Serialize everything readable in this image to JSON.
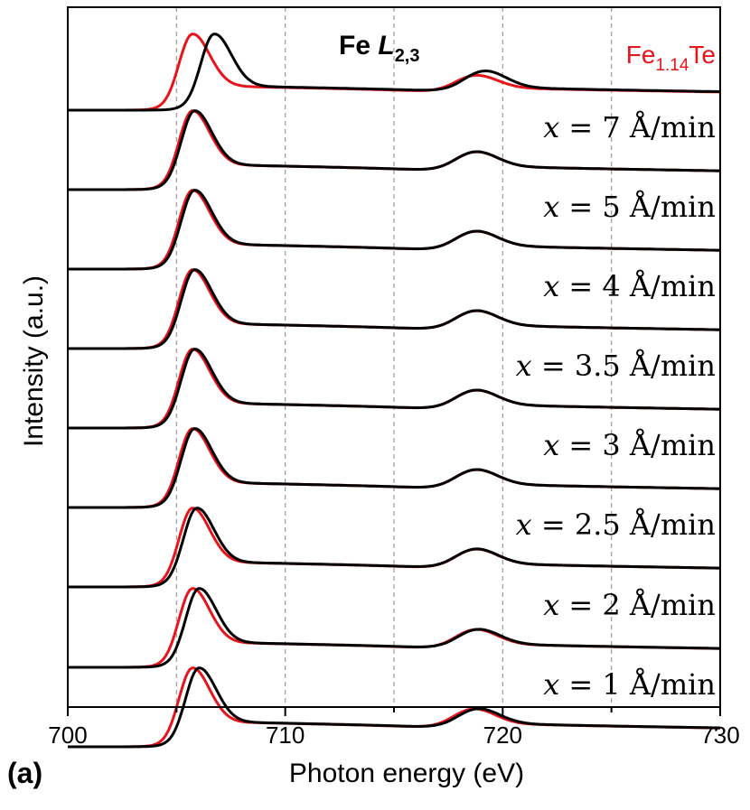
{
  "chart_data": {
    "type": "line",
    "panel_label": "(a)",
    "annotation_title": {
      "main": "Fe ",
      "italic": "L",
      "sub": "2,3"
    },
    "reference_label": {
      "main": "Fe",
      "sub": "1.14",
      "tail": "Te"
    },
    "xlabel": "Photon energy (eV)",
    "ylabel": "Intensity (a.u.)",
    "xlim": [
      700,
      730
    ],
    "x_ticks": [
      "700",
      "710",
      "720",
      "730"
    ],
    "x_tick_values": [
      700,
      710,
      720,
      730
    ],
    "minor_tick_step": 5,
    "grid": "vertical dashed lines at 705, 710, 715, 720, 725",
    "grid_lines": [
      705,
      710,
      715,
      720,
      725
    ],
    "y_ticks": "none",
    "colors": {
      "sample": "#000000",
      "reference": "#e8141b",
      "grid": "#9a9a9a"
    },
    "series_description": "Each panel row shows a black sample spectrum overlaid with the red Fe1.14Te reference; spectra are vertically offset.",
    "spectra": [
      {
        "label": "",
        "label_pre": "",
        "label_value": "",
        "label_unit": "",
        "L3_peak_eV": 706.7,
        "L2_peak_eV": 719.2,
        "ref_L3_peak_eV": 705.7,
        "ref_L2_peak_eV": 718.8,
        "L3_height": 1.0,
        "L2_height": 0.37
      },
      {
        "label": "x = 7 Å/min",
        "label_pre": "x = ",
        "label_value": "7",
        "label_unit": " Å/min",
        "L3_peak_eV": 705.8,
        "L2_peak_eV": 718.8,
        "ref_L3_peak_eV": 705.7,
        "ref_L2_peak_eV": 718.8,
        "L3_height": 1.0,
        "L2_height": 0.32
      },
      {
        "label": "x = 5 Å/min",
        "label_pre": "x = ",
        "label_value": "5",
        "label_unit": " Å/min",
        "L3_peak_eV": 705.8,
        "L2_peak_eV": 718.8,
        "ref_L3_peak_eV": 705.7,
        "ref_L2_peak_eV": 718.8,
        "L3_height": 1.0,
        "L2_height": 0.32
      },
      {
        "label": "x = 4 Å/min",
        "label_pre": "x = ",
        "label_value": "4",
        "label_unit": " Å/min",
        "L3_peak_eV": 705.8,
        "L2_peak_eV": 718.8,
        "ref_L3_peak_eV": 705.7,
        "ref_L2_peak_eV": 718.8,
        "L3_height": 1.0,
        "L2_height": 0.32
      },
      {
        "label": "x = 3.5 Å/min",
        "label_pre": "x = ",
        "label_value": "3.5",
        "label_unit": " Å/min",
        "L3_peak_eV": 705.8,
        "L2_peak_eV": 718.8,
        "ref_L3_peak_eV": 705.7,
        "ref_L2_peak_eV": 718.8,
        "L3_height": 1.0,
        "L2_height": 0.32
      },
      {
        "label": "x = 3 Å/min",
        "label_pre": "x = ",
        "label_value": "3",
        "label_unit": " Å/min",
        "L3_peak_eV": 705.8,
        "L2_peak_eV": 718.8,
        "ref_L3_peak_eV": 705.7,
        "ref_L2_peak_eV": 718.8,
        "L3_height": 1.0,
        "L2_height": 0.32
      },
      {
        "label": "x = 2.5 Å/min",
        "label_pre": "x = ",
        "label_value": "2.5",
        "label_unit": " Å/min",
        "L3_peak_eV": 705.9,
        "L2_peak_eV": 718.8,
        "ref_L3_peak_eV": 705.7,
        "ref_L2_peak_eV": 718.8,
        "L3_height": 1.0,
        "L2_height": 0.32
      },
      {
        "label": "x = 2 Å/min",
        "label_pre": "x = ",
        "label_value": "2",
        "label_unit": " Å/min",
        "L3_peak_eV": 706.0,
        "L2_peak_eV": 718.9,
        "ref_L3_peak_eV": 705.7,
        "ref_L2_peak_eV": 718.8,
        "L3_height": 1.0,
        "L2_height": 0.32
      },
      {
        "label": "x = 1 Å/min",
        "label_pre": "x = ",
        "label_value": "1",
        "label_unit": " Å/min",
        "L3_peak_eV": 706.0,
        "L2_peak_eV": 718.9,
        "ref_L3_peak_eV": 705.7,
        "ref_L2_peak_eV": 718.7,
        "L3_height": 1.0,
        "L2_height": 0.32
      }
    ]
  }
}
